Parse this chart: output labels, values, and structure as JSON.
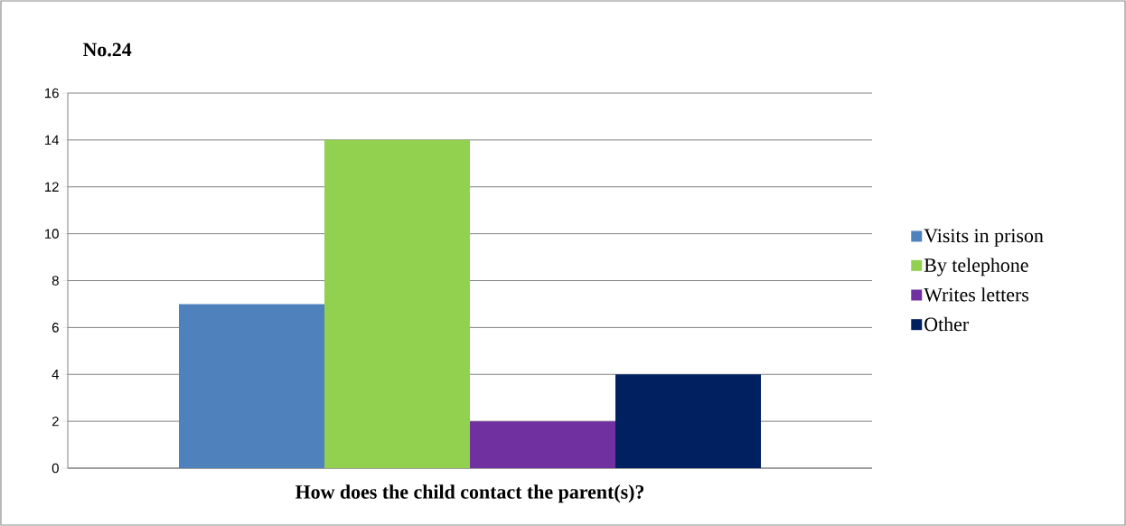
{
  "chart_data": {
    "type": "bar",
    "title": "No.24",
    "xlabel": "How does the child contact the parent(s)?",
    "categories": [
      null
    ],
    "series": [
      {
        "name": "Visits in prison",
        "color": "#4f81bd",
        "values": [
          7
        ]
      },
      {
        "name": "By telephone",
        "color": "#92d050",
        "values": [
          14
        ]
      },
      {
        "name": "Writes letters",
        "color": "#7030a0",
        "values": [
          2
        ]
      },
      {
        "name": "Other",
        "color": "#002060",
        "values": [
          4
        ]
      }
    ],
    "ylim": [
      0,
      16
    ],
    "yticks": [
      0,
      2,
      4,
      6,
      8,
      10,
      12,
      14,
      16
    ],
    "grid": "y",
    "legend": "right"
  }
}
